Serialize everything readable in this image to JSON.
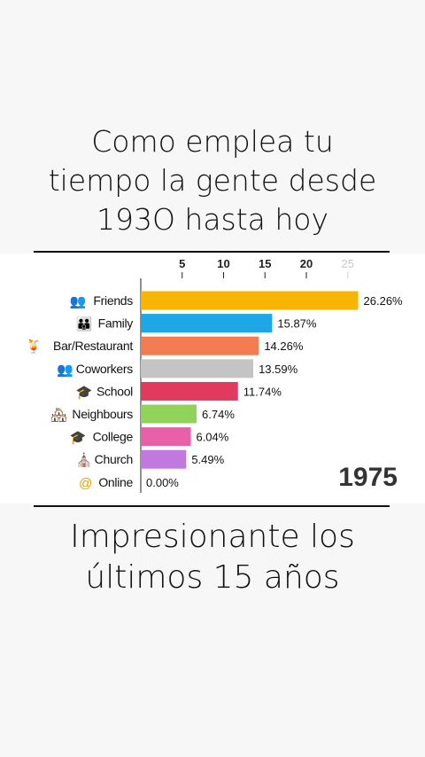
{
  "header": {
    "line1": "Como emplea tu",
    "line2": "tiempo la gente desde",
    "line3": "193O hasta hoy"
  },
  "footer": {
    "line1": "Impresionante los",
    "line2": "últimos 15 años"
  },
  "chart_data": {
    "type": "bar",
    "orientation": "horizontal",
    "year": "1975",
    "x_ticks": [
      5,
      10,
      15,
      20,
      25
    ],
    "xlim": [
      0,
      26.5
    ],
    "grid": false,
    "categories": [
      "Friends",
      "Family",
      "Bar/Restaurant",
      "Coworkers",
      "School",
      "Neighbours",
      "College",
      "Church",
      "Online"
    ],
    "values": [
      26.26,
      15.87,
      14.26,
      13.59,
      11.74,
      6.74,
      6.04,
      5.49,
      0.0
    ],
    "value_labels": [
      "26.26%",
      "15.87%",
      "14.26%",
      "13.59%",
      "11.74%",
      "6.74%",
      "6.04%",
      "5.49%",
      "0.00%"
    ],
    "colors": [
      "#f7b500",
      "#1ea7e6",
      "#f47c52",
      "#c4c4c4",
      "#e23a5f",
      "#8fd35a",
      "#e860a8",
      "#c179e0",
      "#999999"
    ],
    "icons": [
      "friends-icon",
      "family-icon",
      "bar-restaurant-icon",
      "coworkers-icon",
      "school-icon",
      "neighbours-icon",
      "college-icon",
      "church-icon",
      "online-icon"
    ],
    "icon_glyphs": [
      "👥",
      "👪",
      "🍹",
      "👥",
      "🎓",
      "🏘",
      "🎓",
      "⛪",
      "@"
    ]
  }
}
